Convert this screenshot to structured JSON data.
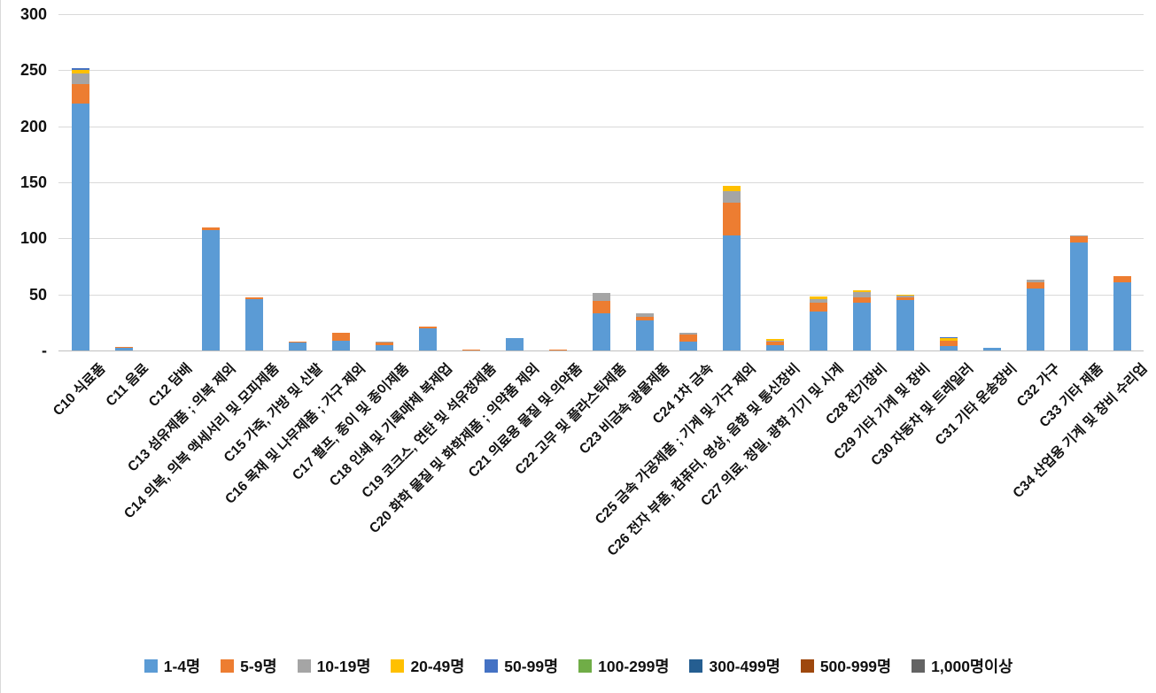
{
  "chart_data": {
    "type": "bar",
    "stacked": true,
    "title": "",
    "xlabel": "",
    "ylabel": "",
    "ylim": [
      0,
      300
    ],
    "ytick_step": 50,
    "ytick_labels": [
      "-",
      "50",
      "100",
      "150",
      "200",
      "250",
      "300"
    ],
    "grid": true,
    "legend_position": "bottom",
    "categories": [
      "C10 식료품",
      "C11 음료",
      "C12 담배",
      "C13 섬유제품 ; 의복 제외",
      "C14 의복, 의복 액세서리 및 모피제품",
      "C15 가죽, 가방 및 신발",
      "C16 목재 및 나무제품 ; 가구 제외",
      "C17 펄프, 종이 및 종이제품",
      "C18 인쇄 및 기록매체 복제업",
      "C19 코크스, 연탄 및 석유정제품",
      "C20 화학 물질 및 화학제품 ; 의약품 제외",
      "C21 의료용 물질 및 의약품",
      "C22 고무 및 플라스틱제품",
      "C23 비금속 광물제품",
      "C24 1차 금속",
      "C25 금속 가공제품 ; 기계 및 가구 제외",
      "C26 전자 부품, 컴퓨터, 영상, 음향 및 통신장비",
      "C27 의료, 정밀, 광학 기기 및 시계",
      "C28 전기장비",
      "C29 기타 기계 및 장비",
      "C30 자동차 및 트레일러",
      "C31 기타 운송장비",
      "C32 가구",
      "C33 기타 제품",
      "C34 산업용 기계 및 장비 수리업"
    ],
    "series": [
      {
        "name": "1-4명",
        "color": "#5B9BD5",
        "values": [
          220,
          2,
          0,
          107,
          46,
          7,
          9,
          5,
          20,
          0,
          11,
          0,
          33,
          27,
          8,
          103,
          5,
          35,
          43,
          45,
          4,
          2,
          55,
          96,
          61
        ]
      },
      {
        "name": "5-9명",
        "color": "#ED7D31",
        "values": [
          18,
          1,
          0,
          3,
          1,
          1,
          7,
          2,
          1,
          1,
          0,
          1,
          11,
          3,
          6,
          29,
          3,
          8,
          4,
          2,
          5,
          0,
          6,
          6,
          5
        ]
      },
      {
        "name": "10-19명",
        "color": "#A5A5A5",
        "values": [
          9,
          0,
          0,
          0,
          0,
          0,
          0,
          1,
          0,
          0,
          0,
          0,
          7,
          3,
          2,
          10,
          1,
          3,
          5,
          2,
          0,
          0,
          2,
          1,
          0
        ]
      },
      {
        "name": "20-49명",
        "color": "#FFC000",
        "values": [
          3,
          0,
          0,
          0,
          0,
          0,
          0,
          0,
          0,
          0,
          0,
          0,
          0,
          0,
          0,
          5,
          1,
          2,
          2,
          1,
          2,
          0,
          0,
          0,
          0
        ]
      },
      {
        "name": "50-99명",
        "color": "#4472C4",
        "values": [
          2,
          0,
          0,
          0,
          0,
          0,
          0,
          0,
          0,
          0,
          0,
          0,
          0,
          0,
          0,
          0,
          0,
          0,
          0,
          0,
          1,
          0,
          0,
          0,
          0
        ]
      },
      {
        "name": "100-299명",
        "color": "#70AD47",
        "values": [
          0,
          0,
          0,
          0,
          0,
          0,
          0,
          0,
          0,
          0,
          0,
          0,
          0,
          0,
          0,
          0,
          0,
          0,
          0,
          0,
          0,
          0,
          0,
          0,
          0
        ]
      },
      {
        "name": "300-499명",
        "color": "#255E91",
        "values": [
          0,
          0,
          0,
          0,
          0,
          0,
          0,
          0,
          0,
          0,
          0,
          0,
          0,
          0,
          0,
          0,
          0,
          0,
          0,
          0,
          0,
          0,
          0,
          0,
          0
        ]
      },
      {
        "name": "500-999명",
        "color": "#9E480E",
        "values": [
          0,
          0,
          0,
          0,
          0,
          0,
          0,
          0,
          0,
          0,
          0,
          0,
          0,
          0,
          0,
          0,
          0,
          0,
          0,
          0,
          0,
          0,
          0,
          0,
          0
        ]
      },
      {
        "name": "1,000명이상",
        "color": "#636363",
        "values": [
          0,
          0,
          0,
          0,
          0,
          0,
          0,
          0,
          0,
          0,
          0,
          0,
          0,
          0,
          0,
          0,
          0,
          0,
          0,
          0,
          0,
          0,
          0,
          0,
          0
        ]
      }
    ]
  }
}
